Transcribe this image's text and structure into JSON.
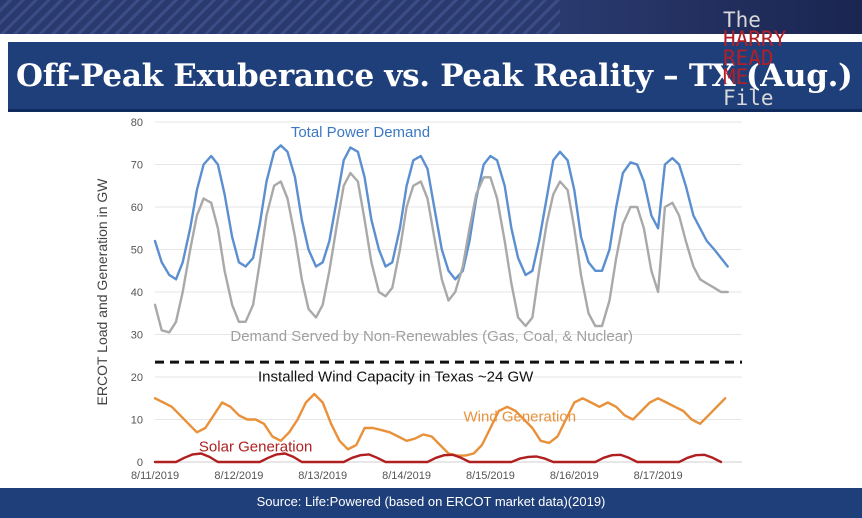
{
  "slide": {
    "title": "Off-Peak Exuberance vs. Peak Reality – TX (Aug.)",
    "source": "Source: Life:Powered (based on ERCOT market data)(2019)",
    "colors": {
      "title_bar": "#1f3f7a",
      "demand": "#5b8fd0",
      "non_renewables": "#a9a9a9",
      "wind": "#e8913a",
      "solar": "#b02020",
      "wind_capacity": "#111111"
    }
  },
  "watermark": {
    "line1": "The",
    "line2": "HARRY",
    "line3": "READ",
    "line4": "ME",
    "line5": "File"
  },
  "chart_data": {
    "type": "line",
    "title": "",
    "xlabel": "",
    "ylabel": "ERCOT Load and Generation in GW",
    "ylim": [
      0,
      80
    ],
    "yticks": [
      0,
      10,
      20,
      30,
      40,
      50,
      60,
      70,
      80
    ],
    "xlim": [
      0,
      7
    ],
    "x_ticks": [
      {
        "x": 0,
        "label": "8/11/2019"
      },
      {
        "x": 1,
        "label": "8/12/2019"
      },
      {
        "x": 2,
        "label": "8/13/2019"
      },
      {
        "x": 3,
        "label": "8/14/2019"
      },
      {
        "x": 4,
        "label": "8/15/2019"
      },
      {
        "x": 5,
        "label": "8/16/2019"
      },
      {
        "x": 6,
        "label": "8/17/2019"
      }
    ],
    "x_unit": "days since 8/11/2019 00:00",
    "series": [
      {
        "name": "Total Power Demand",
        "color": "#5b8fd0",
        "x": [
          0,
          0.08,
          0.17,
          0.25,
          0.33,
          0.42,
          0.5,
          0.58,
          0.67,
          0.75,
          0.83,
          0.92,
          1,
          1.08,
          1.17,
          1.25,
          1.33,
          1.42,
          1.5,
          1.58,
          1.67,
          1.75,
          1.83,
          1.92,
          2,
          2.08,
          2.17,
          2.25,
          2.33,
          2.42,
          2.5,
          2.58,
          2.67,
          2.75,
          2.83,
          2.92,
          3,
          3.08,
          3.17,
          3.25,
          3.33,
          3.42,
          3.5,
          3.58,
          3.67,
          3.75,
          3.83,
          3.92,
          4,
          4.08,
          4.17,
          4.25,
          4.33,
          4.42,
          4.5,
          4.58,
          4.67,
          4.75,
          4.83,
          4.92,
          5,
          5.08,
          5.17,
          5.25,
          5.33,
          5.42,
          5.5,
          5.58,
          5.67,
          5.75,
          5.83,
          5.92,
          6,
          6.08,
          6.17,
          6.25,
          6.33,
          6.42,
          6.5,
          6.58,
          6.67,
          6.75,
          6.83
        ],
        "values": [
          52,
          47,
          44,
          43,
          47,
          55,
          64,
          70,
          72,
          70,
          63,
          53,
          47,
          46,
          48,
          56,
          66,
          73,
          74.5,
          73,
          67,
          57,
          50,
          46,
          47,
          52,
          62,
          71,
          74,
          73,
          67,
          57,
          50,
          46,
          47,
          55,
          65,
          71,
          72,
          69,
          60,
          50,
          45,
          43,
          45,
          52,
          62,
          70,
          72,
          71,
          65,
          55,
          48,
          44,
          45,
          52,
          62,
          71,
          73,
          71,
          64,
          53,
          47,
          45,
          45,
          50,
          60,
          68,
          70.5,
          70,
          66,
          58,
          55,
          70,
          71.5,
          70,
          65,
          58,
          55,
          52,
          50,
          48,
          46
        ]
      },
      {
        "name": "Demand Served by Non-Renewables (Gas, Coal, & Nuclear)",
        "color": "#a9a9a9",
        "x": [
          0,
          0.08,
          0.17,
          0.25,
          0.33,
          0.42,
          0.5,
          0.58,
          0.67,
          0.75,
          0.83,
          0.92,
          1,
          1.08,
          1.17,
          1.25,
          1.33,
          1.42,
          1.5,
          1.58,
          1.67,
          1.75,
          1.83,
          1.92,
          2,
          2.08,
          2.17,
          2.25,
          2.33,
          2.42,
          2.5,
          2.58,
          2.67,
          2.75,
          2.83,
          2.92,
          3,
          3.08,
          3.17,
          3.25,
          3.33,
          3.42,
          3.5,
          3.58,
          3.67,
          3.75,
          3.83,
          3.92,
          4,
          4.08,
          4.17,
          4.25,
          4.33,
          4.42,
          4.5,
          4.58,
          4.67,
          4.75,
          4.83,
          4.92,
          5,
          5.08,
          5.17,
          5.25,
          5.33,
          5.42,
          5.5,
          5.58,
          5.67,
          5.75,
          5.83,
          5.92,
          6,
          6.08,
          6.17,
          6.25,
          6.33,
          6.42,
          6.5,
          6.58,
          6.67,
          6.75,
          6.83
        ],
        "values": [
          37,
          31,
          30.5,
          33,
          40,
          50,
          58,
          62,
          61,
          55,
          45,
          37,
          33,
          33,
          37,
          47,
          58,
          65,
          66,
          62,
          53,
          43,
          36,
          34,
          37,
          45,
          56,
          65,
          68,
          66,
          57,
          47,
          40,
          39,
          41,
          50,
          60,
          65,
          66,
          62,
          53,
          43,
          38,
          40,
          46,
          55,
          63,
          67,
          67,
          62,
          52,
          42,
          34,
          32,
          34,
          45,
          56,
          63,
          66,
          64,
          55,
          44,
          35,
          32,
          32,
          38,
          48,
          56,
          60,
          60,
          55,
          45,
          40,
          60,
          61,
          58,
          52,
          46,
          43,
          42,
          41,
          40,
          40
        ]
      },
      {
        "name": "Wind Generation",
        "color": "#e8913a",
        "x": [
          0,
          0.1,
          0.2,
          0.3,
          0.4,
          0.5,
          0.6,
          0.7,
          0.8,
          0.9,
          1,
          1.1,
          1.2,
          1.3,
          1.4,
          1.5,
          1.6,
          1.7,
          1.8,
          1.9,
          2,
          2.1,
          2.2,
          2.3,
          2.4,
          2.5,
          2.6,
          2.7,
          2.8,
          2.9,
          3,
          3.1,
          3.2,
          3.3,
          3.4,
          3.5,
          3.6,
          3.7,
          3.8,
          3.9,
          4,
          4.1,
          4.2,
          4.3,
          4.4,
          4.5,
          4.6,
          4.7,
          4.8,
          4.9,
          5,
          5.1,
          5.2,
          5.3,
          5.4,
          5.5,
          5.6,
          5.7,
          5.8,
          5.9,
          6,
          6.1,
          6.2,
          6.3,
          6.4,
          6.5,
          6.6,
          6.7,
          6.8
        ],
        "values": [
          15,
          14,
          13,
          11,
          9,
          7,
          8,
          11,
          14,
          13,
          11,
          10,
          10,
          9,
          6,
          5,
          7,
          10,
          14,
          16,
          14,
          9,
          5,
          3,
          4,
          8,
          8,
          7.5,
          7,
          6,
          5,
          5.5,
          6.5,
          6,
          4,
          2,
          1.5,
          1.5,
          2,
          4,
          8,
          12,
          13,
          12,
          10,
          8,
          5,
          4.5,
          6,
          10,
          14,
          15,
          14,
          13,
          14,
          13,
          11,
          10,
          12,
          14,
          15,
          14,
          13,
          12,
          10,
          9,
          11,
          13,
          15
        ]
      },
      {
        "name": "Solar Generation",
        "color": "#b02020",
        "x": [
          0,
          0.25,
          0.35,
          0.45,
          0.55,
          0.65,
          0.75,
          1,
          1.25,
          1.35,
          1.45,
          1.55,
          1.65,
          1.75,
          2,
          2.25,
          2.35,
          2.45,
          2.55,
          2.65,
          2.75,
          3,
          3.25,
          3.35,
          3.45,
          3.55,
          3.65,
          3.75,
          4,
          4.25,
          4.35,
          4.45,
          4.55,
          4.65,
          4.75,
          5,
          5.25,
          5.35,
          5.45,
          5.55,
          5.65,
          5.75,
          6,
          6.25,
          6.35,
          6.45,
          6.55,
          6.65,
          6.75
        ],
        "values": [
          0,
          0,
          1,
          1.8,
          2,
          1.2,
          0,
          0,
          0,
          1,
          1.8,
          2,
          1.2,
          0,
          0,
          0,
          1,
          1.6,
          1.8,
          1,
          0,
          0,
          0,
          1,
          1.6,
          1.7,
          1,
          0,
          0,
          0,
          0.8,
          1.2,
          1.3,
          0.8,
          0,
          0,
          0,
          1,
          1.6,
          1.7,
          1,
          0,
          0,
          0,
          1,
          1.6,
          1.7,
          1,
          0
        ]
      }
    ],
    "reference_lines": [
      {
        "name": "Installed Wind Capacity in Texas ~24 GW",
        "y": 23.5,
        "style": "dashed",
        "color": "#111111"
      }
    ],
    "annotations": [
      {
        "text": "Total Power Demand",
        "color": "#3a78c4",
        "x": 2.45,
        "y": 76.5
      },
      {
        "text": "Demand Served by Non-Renewables (Gas, Coal, & Nuclear)",
        "color": "#a0a0a0",
        "x": 3.3,
        "y": 28.5
      },
      {
        "text": "Installed Wind Capacity in Texas ~24 GW",
        "color": "#111111",
        "x": 2.87,
        "y": 19
      },
      {
        "text": "Wind Generation",
        "color": "#e8913a",
        "x": 4.35,
        "y": 9.5
      },
      {
        "text": "Solar Generation",
        "color": "#b02020",
        "x": 1.2,
        "y": 2.5
      }
    ]
  }
}
